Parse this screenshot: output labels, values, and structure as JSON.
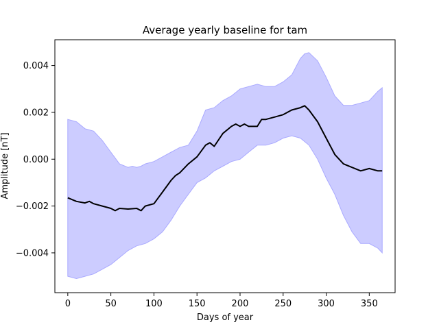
{
  "chart_data": {
    "type": "line",
    "title": "Average yearly baseline for tam",
    "xlabel": "Days of year",
    "ylabel": "Amplitude [nT]",
    "xlim": [
      -15,
      380
    ],
    "ylim": [
      -0.0057,
      0.0051
    ],
    "xticks": [
      0,
      50,
      100,
      150,
      200,
      250,
      300,
      350
    ],
    "xtick_labels": [
      "0",
      "50",
      "100",
      "150",
      "200",
      "250",
      "300",
      "350"
    ],
    "yticks": [
      -0.004,
      -0.002,
      0.0,
      0.002,
      0.004
    ],
    "ytick_labels": [
      "−0.004",
      "−0.002",
      "0.000",
      "0.002",
      "0.004"
    ],
    "grid": false,
    "legend": "none",
    "colors": {
      "mean_line": "#000000",
      "band_fill": "#ccccff",
      "band_edge": "#a9a9ff"
    },
    "series": [
      {
        "role": "mean",
        "x": [
          0,
          10,
          20,
          25,
          30,
          40,
          50,
          55,
          60,
          70,
          80,
          85,
          90,
          100,
          110,
          120,
          125,
          130,
          140,
          150,
          160,
          165,
          170,
          180,
          190,
          195,
          200,
          205,
          210,
          220,
          225,
          230,
          240,
          250,
          260,
          270,
          275,
          280,
          290,
          300,
          310,
          320,
          330,
          340,
          350,
          360,
          365
        ],
        "y": [
          -0.00165,
          -0.0018,
          -0.00187,
          -0.0018,
          -0.0019,
          -0.002,
          -0.0021,
          -0.0022,
          -0.0021,
          -0.00213,
          -0.0021,
          -0.0022,
          -0.002,
          -0.0019,
          -0.0014,
          -0.0009,
          -0.0007,
          -0.00058,
          -0.0002,
          0.0001,
          0.0006,
          0.0007,
          0.00055,
          0.0011,
          0.0014,
          0.0015,
          0.0014,
          0.0015,
          0.0014,
          0.0014,
          0.0017,
          0.0017,
          0.0018,
          0.0019,
          0.0021,
          0.0022,
          0.00228,
          0.0021,
          0.0016,
          0.0009,
          0.0002,
          -0.0002,
          -0.00035,
          -0.0005,
          -0.0004,
          -0.0005,
          -0.0005
        ]
      },
      {
        "role": "upper",
        "x": [
          0,
          10,
          20,
          30,
          40,
          50,
          60,
          70,
          75,
          80,
          85,
          90,
          100,
          110,
          120,
          130,
          140,
          150,
          160,
          170,
          180,
          190,
          200,
          210,
          220,
          230,
          240,
          250,
          260,
          270,
          275,
          280,
          290,
          300,
          310,
          320,
          330,
          340,
          350,
          360,
          365
        ],
        "y": [
          0.0017,
          0.0016,
          0.0013,
          0.0012,
          0.0008,
          0.0003,
          -0.0002,
          -0.00035,
          -0.0003,
          -0.00035,
          -0.0003,
          -0.0002,
          -0.0001,
          0.0001,
          0.0003,
          0.0005,
          0.0006,
          0.0012,
          0.0021,
          0.0022,
          0.0025,
          0.0027,
          0.003,
          0.0031,
          0.0032,
          0.0031,
          0.0031,
          0.0033,
          0.0036,
          0.0043,
          0.0045,
          0.00455,
          0.0042,
          0.0035,
          0.0027,
          0.0023,
          0.0023,
          0.0024,
          0.0025,
          0.0029,
          0.00305
        ]
      },
      {
        "role": "lower",
        "x": [
          0,
          10,
          20,
          30,
          40,
          50,
          60,
          70,
          80,
          90,
          100,
          110,
          120,
          130,
          140,
          150,
          160,
          170,
          180,
          190,
          200,
          210,
          220,
          230,
          240,
          250,
          260,
          270,
          280,
          290,
          300,
          310,
          320,
          330,
          340,
          350,
          360,
          365
        ],
        "y": [
          -0.005,
          -0.0051,
          -0.005,
          -0.0049,
          -0.0047,
          -0.0045,
          -0.0042,
          -0.0039,
          -0.0037,
          -0.0036,
          -0.0034,
          -0.0031,
          -0.0026,
          -0.002,
          -0.0015,
          -0.001,
          -0.0008,
          -0.0005,
          -0.0003,
          -0.0001,
          0.0,
          0.0003,
          0.0006,
          0.0006,
          0.0007,
          0.0009,
          0.001,
          0.0009,
          0.0006,
          0.0,
          -0.0008,
          -0.0015,
          -0.0024,
          -0.0031,
          -0.0036,
          -0.0036,
          -0.0038,
          -0.004
        ]
      }
    ]
  }
}
